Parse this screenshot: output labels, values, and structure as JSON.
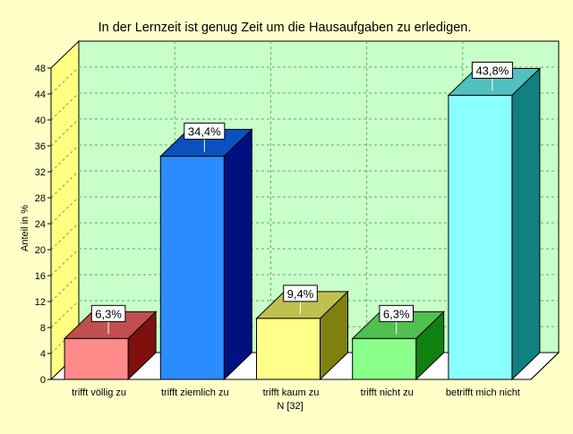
{
  "chart_data": {
    "type": "bar",
    "title": "In der Lernzeit ist genug Zeit um die Hausaufgaben zu erledigen.",
    "ylabel": "Anteil in %",
    "xlabel": "",
    "ylim": [
      0,
      48
    ],
    "yticks": [
      0,
      4,
      8,
      12,
      16,
      20,
      24,
      28,
      32,
      36,
      40,
      44,
      48
    ],
    "grid": true,
    "categories": [
      "trifft völlig zu",
      "trifft ziemlich zu",
      "trifft kaum zu",
      "trifft nicht zu",
      "betrifft mich nicht"
    ],
    "values": [
      6.3,
      34.4,
      9.4,
      6.3,
      43.8
    ],
    "data_labels": [
      "6,3%",
      "34,4%",
      "9,4%",
      "6,3%",
      "43,8%"
    ],
    "note": "N [32]",
    "colors": {
      "background": "#ffffc8",
      "plot_back": "#c8ffc8",
      "left_wall": "#ffff80",
      "floor": "#ffffff",
      "grid": "#7a9a7a",
      "bars": [
        {
          "front": "#ff8a8a",
          "top": "#c05050",
          "side": "#801010"
        },
        {
          "front": "#2b8cff",
          "top": "#0a50c0",
          "side": "#001080"
        },
        {
          "front": "#ffff8a",
          "top": "#c0c050",
          "side": "#808010"
        },
        {
          "front": "#8aff8a",
          "top": "#50c050",
          "side": "#108010"
        },
        {
          "front": "#8affff",
          "top": "#50c0c0",
          "side": "#108080"
        }
      ]
    }
  }
}
